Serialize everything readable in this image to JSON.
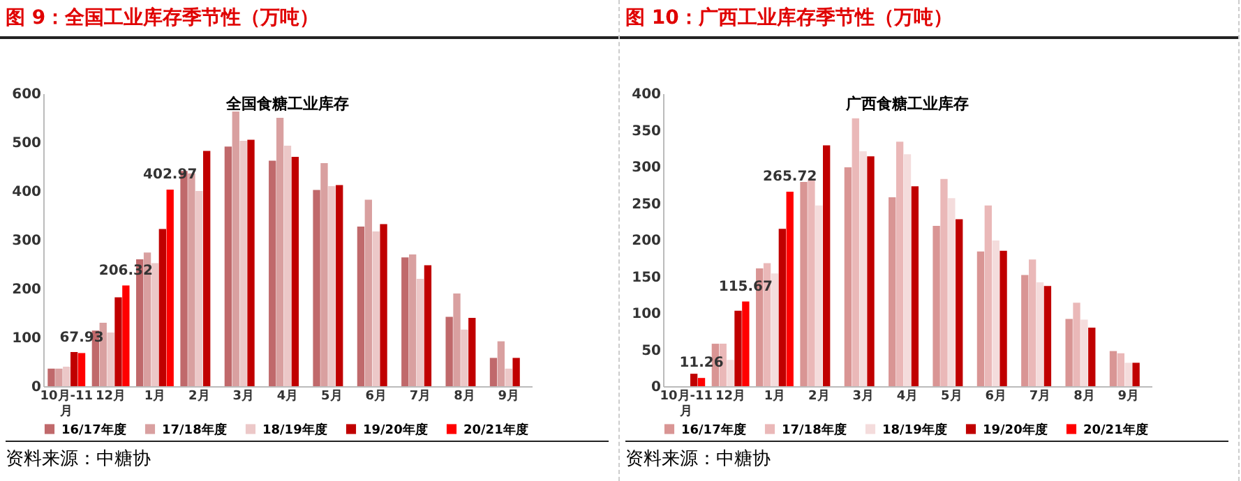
{
  "chart_data": [
    {
      "type": "bar",
      "title": "图 9：全国工业库存季节性（万吨）",
      "subtitle": "全国食糖工业库存",
      "annotations": [
        "资料来源：中糖协"
      ],
      "categories": [
        "10月-11月",
        "12月",
        "1月",
        "2月",
        "3月",
        "4月",
        "5月",
        "6月",
        "7月",
        "8月",
        "9月"
      ],
      "ylim": [
        0,
        600
      ],
      "yticks": [
        0,
        100,
        200,
        300,
        400,
        500,
        600
      ],
      "grid": false,
      "legend": "bottom",
      "series": [
        {
          "name": "16/17年度",
          "color": "#c0696b",
          "values": [
            36,
            114,
            260,
            441,
            491,
            462,
            402,
            327,
            264,
            142,
            58
          ]
        },
        {
          "name": "17/18年度",
          "color": "#d9a0a0",
          "values": [
            36,
            130,
            274,
            436,
            563,
            550,
            457,
            382,
            270,
            190,
            92
          ]
        },
        {
          "name": "18/19年度",
          "color": "#ecc8c8",
          "values": [
            40,
            110,
            252,
            400,
            503,
            493,
            410,
            317,
            220,
            116,
            36
          ]
        },
        {
          "name": "19/20年度",
          "color": "#c00000",
          "values": [
            70,
            182,
            322,
            482,
            505,
            470,
            412,
            332,
            248,
            140,
            58
          ]
        },
        {
          "name": "20/21年度",
          "color": "#ff0000",
          "values": [
            67.93,
            206.32,
            402.97,
            null,
            null,
            null,
            null,
            null,
            null,
            null,
            null
          ],
          "value_labels": [
            "67.93",
            "206.32",
            "402.97",
            null,
            null,
            null,
            null,
            null,
            null,
            null,
            null
          ]
        }
      ]
    },
    {
      "type": "bar",
      "title": "图 10：广西工业库存季节性（万吨）",
      "subtitle": "广西食糖工业库存",
      "annotations": [
        "资料来源：中糖协"
      ],
      "categories": [
        "10月-11月",
        "12月",
        "1月",
        "2月",
        "3月",
        "4月",
        "5月",
        "6月",
        "7月",
        "8月",
        "9月"
      ],
      "ylim": [
        0,
        400
      ],
      "yticks": [
        0,
        50,
        100,
        150,
        200,
        250,
        300,
        350,
        400
      ],
      "grid": false,
      "legend": "bottom",
      "series": [
        {
          "name": "16/17年度",
          "color": "#d99594",
          "values": [
            null,
            58,
            161,
            279,
            299,
            258,
            219,
            184,
            152,
            92,
            48
          ]
        },
        {
          "name": "17/18年度",
          "color": "#eab8b8",
          "values": [
            null,
            58,
            168,
            283,
            366,
            334,
            283,
            247,
            173,
            114,
            45
          ]
        },
        {
          "name": "18/19年度",
          "color": "#f4dcdc",
          "values": [
            null,
            36,
            154,
            247,
            321,
            317,
            257,
            199,
            142,
            91,
            32
          ]
        },
        {
          "name": "19/20年度",
          "color": "#c00000",
          "values": [
            17,
            103,
            215,
            329,
            314,
            273,
            228,
            185,
            137,
            80,
            32
          ]
        },
        {
          "name": "20/21年度",
          "color": "#ff0000",
          "values": [
            11.26,
            115.67,
            265.72,
            null,
            null,
            null,
            null,
            null,
            null,
            null,
            null
          ],
          "value_labels": [
            "11.26",
            "115.67",
            "265.72",
            null,
            null,
            null,
            null,
            null,
            null,
            null,
            null
          ]
        }
      ]
    }
  ]
}
